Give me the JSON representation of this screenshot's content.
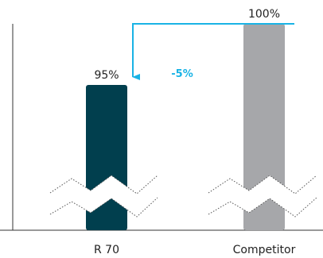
{
  "chart_data": {
    "type": "bar",
    "categories": [
      "R 70",
      "Competitor"
    ],
    "values": [
      95,
      100
    ],
    "value_labels": [
      "95%",
      "100%"
    ],
    "unit": "%",
    "difference_label": "-5%",
    "axis_break": true,
    "grid": false,
    "colors": {
      "bars": [
        "#013f4e",
        "#a6a7aa"
      ],
      "arrow": "#19b3e5",
      "difference_text": "#19b3e5",
      "axis": "#333333",
      "text": "#222222"
    }
  }
}
